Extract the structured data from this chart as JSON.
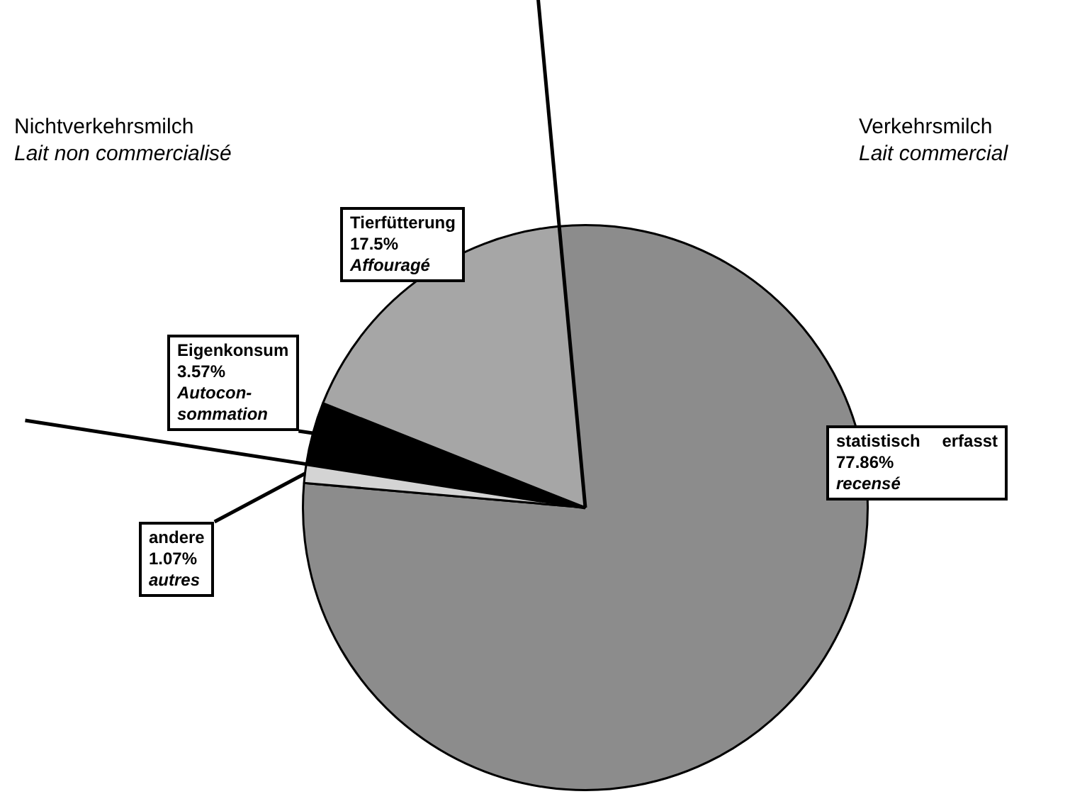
{
  "chart_data": {
    "type": "pie",
    "categories": [
      "statistisch erfasst",
      "andere",
      "Eigenkonsum",
      "Tierfütterung"
    ],
    "values": [
      77.86,
      1.07,
      3.57,
      17.5
    ],
    "value_labels": [
      "77.86%",
      "1.07%",
      "3.57%",
      "17.5%"
    ],
    "colors": [
      "#8c8c8c",
      "#d4d4d4",
      "#000000",
      "#a6a6a6"
    ],
    "annotations": [
      "Nichtverkehrsmilch",
      "Lait non commercialisé",
      "Verkehrsmilch",
      "Lait commercial",
      "recensé",
      "autres",
      "Autocon-sommation",
      "Affouragé"
    ]
  }
}
